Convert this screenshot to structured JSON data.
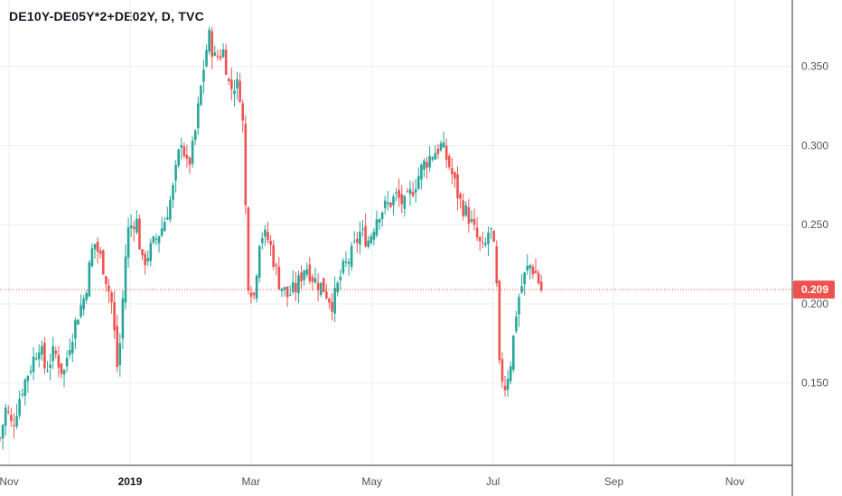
{
  "header": {
    "title": "DE10Y-DE05Y*2+DE02Y, D, TVC"
  },
  "colors": {
    "up": "#26a69a",
    "down": "#ef5350",
    "grid": "#e9ecf1",
    "axis": "#2a2e39",
    "last": "#ef5350"
  },
  "chart_data": {
    "type": "candlestick",
    "title": "DE10Y-DE05Y*2+DE02Y, D, TVC",
    "last_value": "0.209",
    "last_value_num": 0.209,
    "ylim": [
      0.098,
      0.392
    ],
    "y_ticks": [
      {
        "value": 0.35,
        "label": "0.350"
      },
      {
        "value": 0.3,
        "label": "0.300"
      },
      {
        "value": 0.25,
        "label": "0.250"
      },
      {
        "value": 0.2,
        "label": "0.200"
      },
      {
        "value": 0.15,
        "label": "0.150"
      }
    ],
    "x_ticks": [
      {
        "label": "Nov",
        "month": 10
      },
      {
        "label": "2019",
        "month": 12,
        "bold": true
      },
      {
        "label": "Mar",
        "month": 14
      },
      {
        "label": "May",
        "month": 16
      },
      {
        "label": "Jul",
        "month": 18
      },
      {
        "label": "Sep",
        "month": 20
      },
      {
        "label": "Nov",
        "month": 22
      }
    ],
    "x_start_month": 9.85,
    "x_end_month": 22.95,
    "grid": true,
    "close_series": [
      {
        "m": 9.85,
        "v": 0.115
      },
      {
        "m": 9.95,
        "v": 0.135
      },
      {
        "m": 10.05,
        "v": 0.122
      },
      {
        "m": 10.2,
        "v": 0.145
      },
      {
        "m": 10.35,
        "v": 0.16
      },
      {
        "m": 10.5,
        "v": 0.175
      },
      {
        "m": 10.6,
        "v": 0.158
      },
      {
        "m": 10.75,
        "v": 0.17
      },
      {
        "m": 10.9,
        "v": 0.155
      },
      {
        "m": 11.0,
        "v": 0.175
      },
      {
        "m": 11.15,
        "v": 0.195
      },
      {
        "m": 11.25,
        "v": 0.205
      },
      {
        "m": 11.4,
        "v": 0.24
      },
      {
        "m": 11.55,
        "v": 0.225
      },
      {
        "m": 11.7,
        "v": 0.2
      },
      {
        "m": 11.8,
        "v": 0.155
      },
      {
        "m": 11.95,
        "v": 0.245
      },
      {
        "m": 12.1,
        "v": 0.255
      },
      {
        "m": 12.2,
        "v": 0.225
      },
      {
        "m": 12.35,
        "v": 0.235
      },
      {
        "m": 12.55,
        "v": 0.25
      },
      {
        "m": 12.7,
        "v": 0.27
      },
      {
        "m": 12.85,
        "v": 0.305
      },
      {
        "m": 12.95,
        "v": 0.285
      },
      {
        "m": 13.05,
        "v": 0.3
      },
      {
        "m": 13.2,
        "v": 0.345
      },
      {
        "m": 13.3,
        "v": 0.37
      },
      {
        "m": 13.4,
        "v": 0.355
      },
      {
        "m": 13.55,
        "v": 0.36
      },
      {
        "m": 13.65,
        "v": 0.335
      },
      {
        "m": 13.75,
        "v": 0.34
      },
      {
        "m": 13.85,
        "v": 0.33
      },
      {
        "m": 13.95,
        "v": 0.215
      },
      {
        "m": 14.05,
        "v": 0.205
      },
      {
        "m": 14.15,
        "v": 0.245
      },
      {
        "m": 14.3,
        "v": 0.24
      },
      {
        "m": 14.45,
        "v": 0.215
      },
      {
        "m": 14.6,
        "v": 0.205
      },
      {
        "m": 14.75,
        "v": 0.21
      },
      {
        "m": 14.9,
        "v": 0.225
      },
      {
        "m": 15.05,
        "v": 0.215
      },
      {
        "m": 15.2,
        "v": 0.21
      },
      {
        "m": 15.35,
        "v": 0.2
      },
      {
        "m": 15.5,
        "v": 0.22
      },
      {
        "m": 15.65,
        "v": 0.23
      },
      {
        "m": 15.8,
        "v": 0.245
      },
      {
        "m": 15.95,
        "v": 0.24
      },
      {
        "m": 16.1,
        "v": 0.258
      },
      {
        "m": 16.25,
        "v": 0.262
      },
      {
        "m": 16.4,
        "v": 0.268
      },
      {
        "m": 16.55,
        "v": 0.262
      },
      {
        "m": 16.7,
        "v": 0.275
      },
      {
        "m": 16.85,
        "v": 0.288
      },
      {
        "m": 17.0,
        "v": 0.295
      },
      {
        "m": 17.15,
        "v": 0.3
      },
      {
        "m": 17.3,
        "v": 0.285
      },
      {
        "m": 17.45,
        "v": 0.265
      },
      {
        "m": 17.6,
        "v": 0.255
      },
      {
        "m": 17.75,
        "v": 0.24
      },
      {
        "m": 17.85,
        "v": 0.232
      },
      {
        "m": 17.95,
        "v": 0.25
      },
      {
        "m": 18.05,
        "v": 0.225
      },
      {
        "m": 18.1,
        "v": 0.16
      },
      {
        "m": 18.2,
        "v": 0.148
      },
      {
        "m": 18.3,
        "v": 0.165
      },
      {
        "m": 18.4,
        "v": 0.2
      },
      {
        "m": 18.5,
        "v": 0.215
      },
      {
        "m": 18.6,
        "v": 0.225
      },
      {
        "m": 18.7,
        "v": 0.22
      },
      {
        "m": 18.8,
        "v": 0.209
      }
    ]
  }
}
